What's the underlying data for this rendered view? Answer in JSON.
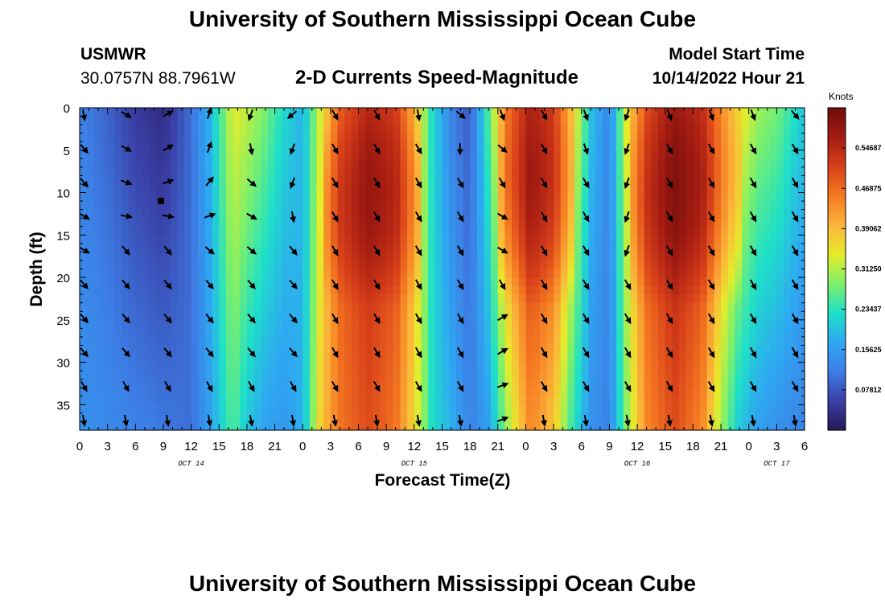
{
  "header": {
    "title": "University of Southern Mississippi Ocean Cube",
    "station": "USMWR",
    "coords": "30.0757N  88.7961W",
    "subtitle": "2-D Currents Speed-Magnitude",
    "model_label": "Model Start Time",
    "model_time": "10/14/2022 Hour 21"
  },
  "footer": {
    "title": "University of Southern Mississippi Ocean Cube"
  },
  "chart_data": {
    "type": "heatmap",
    "title": "2-D Currents Speed-Magnitude",
    "xlabel": "Forecast Time(Z)",
    "ylabel": "Depth (ft)",
    "x_hours": [
      0,
      3,
      6,
      9,
      12,
      15,
      18,
      21,
      24,
      27,
      30,
      33,
      36,
      39,
      42,
      45,
      48,
      51,
      54,
      57,
      60,
      63,
      66,
      69,
      72,
      75,
      78
    ],
    "x_tick_labels": [
      "0",
      "3",
      "6",
      "9",
      "12",
      "15",
      "18",
      "21",
      "0",
      "3",
      "6",
      "9",
      "12",
      "15",
      "18",
      "21",
      "0",
      "3",
      "6",
      "9",
      "12",
      "15",
      "18",
      "21",
      "0",
      "3",
      "6"
    ],
    "xlim": [
      0,
      78
    ],
    "date_labels": [
      {
        "text": "OCT 14",
        "hour": 12
      },
      {
        "text": "OCT 15",
        "hour": 36
      },
      {
        "text": "OCT 16",
        "hour": 60
      },
      {
        "text": "OCT 17",
        "hour": 75
      }
    ],
    "ylim": [
      0,
      38
    ],
    "y_ticks": [
      0,
      5,
      10,
      15,
      20,
      25,
      30,
      35
    ],
    "colorbar": {
      "title": "Knots",
      "vmin": 0.0,
      "vmax": 0.625,
      "ticks": [
        "0.07812",
        "0.15625",
        "0.23437",
        "0.31250",
        "0.39062",
        "0.46875",
        "0.54687"
      ],
      "tick_values": [
        0.078125,
        0.15625,
        0.234375,
        0.3125,
        0.390625,
        0.46875,
        0.546875
      ],
      "colors": [
        "#26185a",
        "#3a3fa6",
        "#3d7ee6",
        "#2ea8f2",
        "#1ee0c8",
        "#7ef06a",
        "#e6ec2a",
        "#fbb43a",
        "#f57a22",
        "#d8401a",
        "#a51c12",
        "#6e0c0c"
      ]
    },
    "speed_profile": [
      {
        "hour": 0,
        "surface": 0.12,
        "bottom": 0.14
      },
      {
        "hour": 3,
        "surface": 0.09,
        "bottom": 0.13
      },
      {
        "hour": 6,
        "surface": 0.05,
        "bottom": 0.12
      },
      {
        "hour": 9,
        "surface": 0.03,
        "bottom": 0.11
      },
      {
        "hour": 12,
        "surface": 0.1,
        "bottom": 0.1
      },
      {
        "hour": 14,
        "surface": 0.18,
        "bottom": 0.16
      },
      {
        "hour": 16.5,
        "surface": 0.34,
        "bottom": 0.26
      },
      {
        "hour": 18,
        "surface": 0.32,
        "bottom": 0.2
      },
      {
        "hour": 20,
        "surface": 0.28,
        "bottom": 0.16
      },
      {
        "hour": 22,
        "surface": 0.22,
        "bottom": 0.15
      },
      {
        "hour": 24,
        "surface": 0.18,
        "bottom": 0.18
      },
      {
        "hour": 26,
        "surface": 0.34,
        "bottom": 0.38
      },
      {
        "hour": 28,
        "surface": 0.48,
        "bottom": 0.46
      },
      {
        "hour": 31,
        "surface": 0.55,
        "bottom": 0.5
      },
      {
        "hour": 34,
        "surface": 0.52,
        "bottom": 0.46
      },
      {
        "hour": 36,
        "surface": 0.4,
        "bottom": 0.36
      },
      {
        "hour": 38,
        "surface": 0.22,
        "bottom": 0.22
      },
      {
        "hour": 40,
        "surface": 0.12,
        "bottom": 0.18
      },
      {
        "hour": 42,
        "surface": 0.08,
        "bottom": 0.12
      },
      {
        "hour": 44,
        "surface": 0.26,
        "bottom": 0.16
      },
      {
        "hour": 46,
        "surface": 0.46,
        "bottom": 0.3
      },
      {
        "hour": 48.5,
        "surface": 0.56,
        "bottom": 0.44
      },
      {
        "hour": 51,
        "surface": 0.52,
        "bottom": 0.38
      },
      {
        "hour": 53,
        "surface": 0.38,
        "bottom": 0.24
      },
      {
        "hour": 55,
        "surface": 0.2,
        "bottom": 0.14
      },
      {
        "hour": 57,
        "surface": 0.12,
        "bottom": 0.12
      },
      {
        "hour": 59,
        "surface": 0.36,
        "bottom": 0.3
      },
      {
        "hour": 61,
        "surface": 0.5,
        "bottom": 0.44
      },
      {
        "hour": 64,
        "surface": 0.58,
        "bottom": 0.5
      },
      {
        "hour": 67,
        "surface": 0.54,
        "bottom": 0.44
      },
      {
        "hour": 69,
        "surface": 0.44,
        "bottom": 0.3
      },
      {
        "hour": 71,
        "surface": 0.36,
        "bottom": 0.2
      },
      {
        "hour": 73,
        "surface": 0.3,
        "bottom": 0.16
      },
      {
        "hour": 75,
        "surface": 0.28,
        "bottom": 0.14
      },
      {
        "hour": 78,
        "surface": 0.2,
        "bottom": 0.12
      }
    ],
    "vector_hours": [
      0,
      4.5,
      9,
      13.5,
      18,
      22.5,
      27,
      31.5,
      36,
      40.5,
      45,
      49.5,
      54,
      58.5,
      63,
      67.5,
      72,
      76.5
    ],
    "vector_depths": [
      0,
      4,
      8,
      12,
      16,
      20,
      24,
      28,
      32,
      36
    ],
    "vector_directions_deg": [
      [
        170,
        120,
        60,
        20,
        200,
        230,
        150,
        150,
        170,
        130,
        160,
        150,
        160,
        200,
        160,
        160,
        160,
        140
      ],
      [
        140,
        120,
        60,
        20,
        170,
        200,
        150,
        150,
        150,
        180,
        130,
        150,
        160,
        200,
        150,
        150,
        150,
        150
      ],
      [
        140,
        110,
        70,
        40,
        130,
        200,
        150,
        150,
        150,
        150,
        150,
        150,
        150,
        200,
        150,
        150,
        150,
        150
      ],
      [
        120,
        100,
        100,
        70,
        120,
        170,
        150,
        150,
        150,
        150,
        120,
        150,
        150,
        200,
        150,
        150,
        150,
        150
      ],
      [
        120,
        140,
        140,
        130,
        130,
        140,
        150,
        150,
        150,
        150,
        120,
        150,
        150,
        200,
        150,
        150,
        150,
        150
      ],
      [
        140,
        140,
        140,
        140,
        140,
        140,
        150,
        150,
        150,
        150,
        150,
        150,
        150,
        150,
        150,
        150,
        150,
        150
      ],
      [
        140,
        140,
        140,
        140,
        140,
        140,
        150,
        150,
        150,
        150,
        60,
        150,
        150,
        150,
        150,
        150,
        150,
        150
      ],
      [
        140,
        140,
        140,
        140,
        140,
        140,
        150,
        150,
        150,
        150,
        60,
        150,
        150,
        150,
        150,
        150,
        150,
        150
      ],
      [
        150,
        150,
        150,
        150,
        150,
        150,
        150,
        150,
        150,
        150,
        70,
        150,
        150,
        150,
        150,
        150,
        150,
        150
      ],
      [
        170,
        170,
        170,
        170,
        170,
        170,
        170,
        170,
        170,
        170,
        70,
        170,
        170,
        170,
        170,
        170,
        170,
        170
      ]
    ]
  }
}
